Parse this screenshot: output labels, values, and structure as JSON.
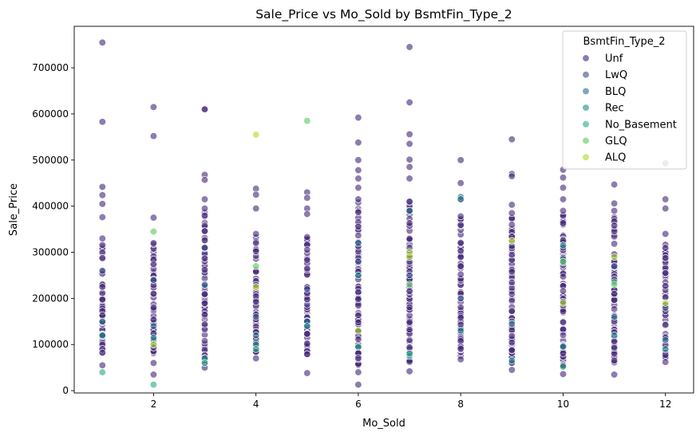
{
  "chart_data": {
    "type": "scatter",
    "title": "Sale_Price vs Mo_Sold by BsmtFin_Type_2",
    "xlabel": "Mo_Sold",
    "ylabel": "Sale_Price",
    "xlim": [
      0.45,
      12.55
    ],
    "ylim": [
      -5000,
      790000
    ],
    "xticks": [
      2,
      4,
      6,
      8,
      10,
      12
    ],
    "yticks": [
      0,
      100000,
      200000,
      300000,
      400000,
      500000,
      600000,
      700000
    ],
    "grid": false,
    "legend": {
      "title": "BsmtFin_Type_2",
      "placement": "top-right"
    },
    "series": [
      {
        "name": "Unf",
        "color": "#472c7a",
        "outliers": [
          [
            1,
            755000
          ],
          [
            1,
            583000
          ],
          [
            1,
            442000
          ],
          [
            1,
            424000
          ],
          [
            1,
            405000
          ],
          [
            1,
            376000
          ],
          [
            1,
            330000
          ],
          [
            1,
            55000
          ],
          [
            2,
            615000
          ],
          [
            2,
            552000
          ],
          [
            2,
            375000
          ],
          [
            2,
            320000
          ],
          [
            2,
            35000
          ],
          [
            2,
            60000
          ],
          [
            3,
            611000
          ],
          [
            3,
            610000
          ],
          [
            3,
            468000
          ],
          [
            3,
            457000
          ],
          [
            3,
            415000
          ],
          [
            3,
            395000
          ],
          [
            3,
            50000
          ],
          [
            4,
            438000
          ],
          [
            4,
            425000
          ],
          [
            4,
            395000
          ],
          [
            4,
            340000
          ],
          [
            4,
            70000
          ],
          [
            5,
            430000
          ],
          [
            5,
            418000
          ],
          [
            5,
            395000
          ],
          [
            5,
            383000
          ],
          [
            5,
            38000
          ],
          [
            6,
            592000
          ],
          [
            6,
            538000
          ],
          [
            6,
            500000
          ],
          [
            6,
            478000
          ],
          [
            6,
            460000
          ],
          [
            6,
            440000
          ],
          [
            6,
            415000
          ],
          [
            6,
            13000
          ],
          [
            6,
            40000
          ],
          [
            7,
            745000
          ],
          [
            7,
            625000
          ],
          [
            7,
            556000
          ],
          [
            7,
            535000
          ],
          [
            7,
            501000
          ],
          [
            7,
            485000
          ],
          [
            7,
            460000
          ],
          [
            7,
            410000
          ],
          [
            7,
            42000
          ],
          [
            8,
            500000
          ],
          [
            8,
            450000
          ],
          [
            8,
            415000
          ],
          [
            8,
            378000
          ],
          [
            8,
            68000
          ],
          [
            9,
            545000
          ],
          [
            9,
            470000
          ],
          [
            9,
            465000
          ],
          [
            9,
            403000
          ],
          [
            9,
            385000
          ],
          [
            9,
            45000
          ],
          [
            10,
            479000
          ],
          [
            10,
            462000
          ],
          [
            10,
            440000
          ],
          [
            10,
            415000
          ],
          [
            10,
            390000
          ],
          [
            10,
            36000
          ],
          [
            11,
            447000
          ],
          [
            11,
            406000
          ],
          [
            11,
            390000
          ],
          [
            11,
            35000
          ],
          [
            12,
            493000
          ],
          [
            12,
            415000
          ],
          [
            12,
            395000
          ],
          [
            12,
            340000
          ],
          [
            12,
            62000
          ]
        ],
        "bands": [
          [
            1,
            75000,
            320000
          ],
          [
            2,
            80000,
            320000
          ],
          [
            3,
            60000,
            390000
          ],
          [
            4,
            80000,
            335000
          ],
          [
            5,
            70000,
            340000
          ],
          [
            6,
            55000,
            410000
          ],
          [
            7,
            60000,
            410000
          ],
          [
            8,
            75000,
            375000
          ],
          [
            9,
            60000,
            380000
          ],
          [
            10,
            50000,
            390000
          ],
          [
            11,
            60000,
            380000
          ],
          [
            12,
            70000,
            320000
          ]
        ]
      },
      {
        "name": "LwQ",
        "color": "#3b528b",
        "points": [
          [
            1,
            260000
          ],
          [
            2,
            240000
          ],
          [
            3,
            310000
          ],
          [
            4,
            160000
          ],
          [
            5,
            220000
          ],
          [
            6,
            280000
          ],
          [
            7,
            250000
          ],
          [
            8,
            200000
          ],
          [
            9,
            150000
          ],
          [
            10,
            285000
          ],
          [
            11,
            270000
          ],
          [
            12,
            180000
          ]
        ]
      },
      {
        "name": "BLQ",
        "color": "#2c728e",
        "points": [
          [
            1,
            150000
          ],
          [
            2,
            140000
          ],
          [
            3,
            230000
          ],
          [
            4,
            120000
          ],
          [
            5,
            150000
          ],
          [
            6,
            320000
          ],
          [
            7,
            390000
          ],
          [
            8,
            420000
          ],
          [
            8,
            415000
          ],
          [
            9,
            145000
          ],
          [
            10,
            280000
          ],
          [
            11,
            160000
          ],
          [
            12,
            110000
          ]
        ]
      },
      {
        "name": "Rec",
        "color": "#21918c",
        "points": [
          [
            1,
            120000
          ],
          [
            2,
            115000
          ],
          [
            3,
            70000
          ],
          [
            4,
            100000
          ],
          [
            5,
            140000
          ],
          [
            6,
            250000
          ],
          [
            7,
            75000
          ],
          [
            8,
            130000
          ],
          [
            9,
            65000
          ],
          [
            10,
            315000
          ],
          [
            10,
            95000
          ],
          [
            11,
            120000
          ],
          [
            12,
            90000
          ]
        ]
      },
      {
        "name": "No_Basement",
        "color": "#28ae80",
        "points": [
          [
            1,
            40000
          ],
          [
            2,
            13000
          ],
          [
            3,
            60000
          ],
          [
            4,
            90000
          ],
          [
            6,
            95000
          ],
          [
            7,
            80000
          ],
          [
            10,
            52000
          ],
          [
            11,
            235000
          ]
        ]
      },
      {
        "name": "GLQ",
        "color": "#5ec962",
        "points": [
          [
            2,
            345000
          ],
          [
            4,
            270000
          ],
          [
            5,
            585000
          ],
          [
            7,
            230000
          ],
          [
            10,
            280000
          ],
          [
            11,
            230000
          ]
        ]
      },
      {
        "name": "ALQ",
        "color": "#addc30",
        "points": [
          [
            2,
            100000
          ],
          [
            4,
            555000
          ],
          [
            4,
            225000
          ],
          [
            6,
            130000
          ],
          [
            7,
            300000
          ],
          [
            7,
            290000
          ],
          [
            9,
            325000
          ],
          [
            10,
            190000
          ],
          [
            11,
            290000
          ],
          [
            12,
            190000
          ]
        ]
      }
    ]
  }
}
